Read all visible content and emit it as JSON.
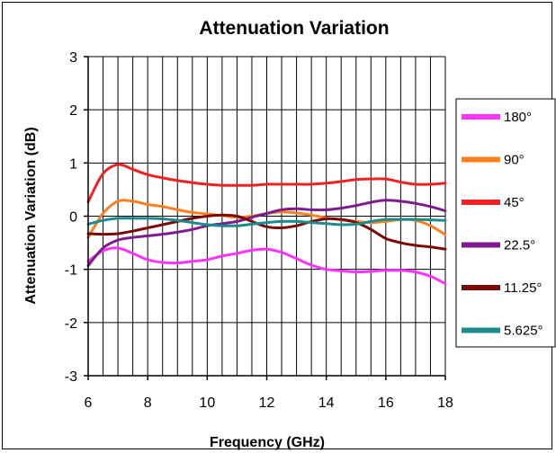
{
  "chart_data": {
    "type": "line",
    "title": "Attenuation Variation",
    "xlabel": "Frequency (GHz)",
    "ylabel": "Attenuation Variation (dB)",
    "xlim": [
      6,
      18
    ],
    "ylim": [
      -3,
      3
    ],
    "xticks": [
      6,
      8,
      10,
      12,
      14,
      16,
      18
    ],
    "yticks": [
      -3,
      -2,
      -1,
      0,
      1,
      2,
      3
    ],
    "grid": "vertical gridlines every 0.5 GHz, horizontal gridlines every 1 dB",
    "legend_position": "right",
    "series": [
      {
        "name": "180°",
        "color": "#ff33ff",
        "x": [
          6,
          6.5,
          7,
          7.5,
          8,
          8.5,
          9,
          9.5,
          10,
          10.5,
          11,
          11.5,
          12,
          12.5,
          13,
          13.5,
          14,
          14.5,
          15,
          15.5,
          16,
          16.5,
          17,
          17.5,
          18
        ],
        "y": [
          -0.85,
          -0.65,
          -0.6,
          -0.7,
          -0.82,
          -0.87,
          -0.88,
          -0.85,
          -0.82,
          -0.75,
          -0.7,
          -0.64,
          -0.62,
          -0.68,
          -0.8,
          -0.92,
          -1.0,
          -1.03,
          -1.05,
          -1.04,
          -1.02,
          -1.02,
          -1.05,
          -1.13,
          -1.27
        ]
      },
      {
        "name": "90°",
        "color": "#ff7f1f",
        "x": [
          6,
          6.5,
          7,
          7.5,
          8,
          8.5,
          9,
          9.5,
          10,
          10.5,
          11,
          11.5,
          12,
          12.5,
          13,
          13.5,
          14,
          14.5,
          15,
          15.5,
          16,
          16.5,
          17,
          17.5,
          18
        ],
        "y": [
          -0.4,
          0.05,
          0.28,
          0.28,
          0.22,
          0.18,
          0.12,
          0.07,
          0.04,
          0.01,
          -0.02,
          0.0,
          0.05,
          0.08,
          0.06,
          0.02,
          -0.03,
          -0.07,
          -0.1,
          -0.12,
          -0.1,
          -0.06,
          -0.08,
          -0.18,
          -0.35
        ]
      },
      {
        "name": "45°",
        "color": "#ee2222",
        "x": [
          6,
          6.5,
          7,
          7.5,
          8,
          8.5,
          9,
          9.5,
          10,
          10.5,
          11,
          11.5,
          12,
          12.5,
          13,
          13.5,
          14,
          14.5,
          15,
          15.5,
          16,
          16.5,
          17,
          17.5,
          18
        ],
        "y": [
          0.27,
          0.8,
          0.97,
          0.88,
          0.78,
          0.72,
          0.67,
          0.63,
          0.6,
          0.58,
          0.58,
          0.58,
          0.6,
          0.6,
          0.6,
          0.6,
          0.62,
          0.65,
          0.69,
          0.7,
          0.7,
          0.64,
          0.6,
          0.6,
          0.62
        ]
      },
      {
        "name": "22.5°",
        "color": "#7b1e8c",
        "x": [
          6,
          6.5,
          7,
          7.5,
          8,
          8.5,
          9,
          9.5,
          10,
          10.5,
          11,
          11.5,
          12,
          12.5,
          13,
          13.5,
          14,
          14.5,
          15,
          15.5,
          16,
          16.5,
          17,
          17.5,
          18
        ],
        "y": [
          -0.93,
          -0.6,
          -0.45,
          -0.4,
          -0.37,
          -0.34,
          -0.3,
          -0.25,
          -0.18,
          -0.14,
          -0.1,
          -0.02,
          0.05,
          0.12,
          0.14,
          0.12,
          0.12,
          0.15,
          0.2,
          0.26,
          0.3,
          0.28,
          0.24,
          0.18,
          0.1
        ]
      },
      {
        "name": "11.25°",
        "color": "#7a0a0a",
        "x": [
          6,
          6.5,
          7,
          7.5,
          8,
          8.5,
          9,
          9.5,
          10,
          10.5,
          11,
          11.5,
          12,
          12.5,
          13,
          13.5,
          14,
          14.5,
          15,
          15.5,
          16,
          16.5,
          17,
          17.5,
          18
        ],
        "y": [
          -0.33,
          -0.34,
          -0.33,
          -0.28,
          -0.22,
          -0.16,
          -0.1,
          -0.04,
          0.0,
          0.02,
          0.0,
          -0.1,
          -0.2,
          -0.22,
          -0.18,
          -0.1,
          -0.05,
          -0.06,
          -0.12,
          -0.25,
          -0.42,
          -0.5,
          -0.55,
          -0.58,
          -0.62
        ]
      },
      {
        "name": "5.625°",
        "color": "#1a8c8c",
        "x": [
          6,
          6.5,
          7,
          7.5,
          8,
          8.5,
          9,
          9.5,
          10,
          10.5,
          11,
          11.5,
          12,
          12.5,
          13,
          13.5,
          14,
          14.5,
          15,
          15.5,
          16,
          16.5,
          17,
          17.5,
          18
        ],
        "y": [
          -0.15,
          -0.08,
          -0.04,
          -0.04,
          -0.04,
          -0.05,
          -0.08,
          -0.12,
          -0.16,
          -0.18,
          -0.18,
          -0.15,
          -0.12,
          -0.1,
          -0.1,
          -0.12,
          -0.14,
          -0.16,
          -0.15,
          -0.1,
          -0.06,
          -0.06,
          -0.06,
          -0.07,
          -0.08
        ]
      }
    ]
  }
}
